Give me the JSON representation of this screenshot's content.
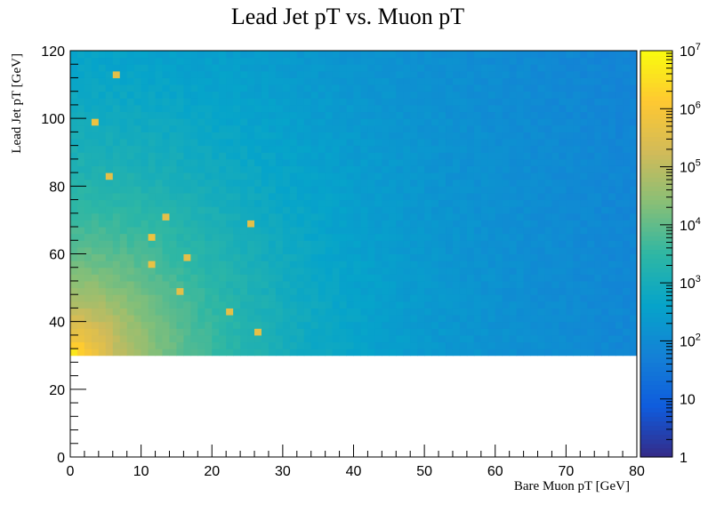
{
  "chart_data": {
    "type": "heatmap",
    "title": "Lead Jet pT vs. Muon pT",
    "xlabel": "Bare Muon pT [GeV]",
    "ylabel": "Lead Jet pT [GeV]",
    "xlim": [
      0,
      80
    ],
    "ylim": [
      0,
      120
    ],
    "x_bins": 80,
    "y_bins": 60,
    "x_ticks": [
      0,
      10,
      20,
      30,
      40,
      50,
      60,
      70,
      80
    ],
    "y_ticks": [
      0,
      20,
      40,
      60,
      80,
      100,
      120
    ],
    "filled_region": {
      "y_min": 30,
      "y_max": 120,
      "x_min": 0,
      "x_max": 80
    },
    "z_scale": "log",
    "zlim": [
      1,
      10000000
    ],
    "z_ticks": [
      {
        "value": 1,
        "label": "1",
        "exp": ""
      },
      {
        "value": 10,
        "label": "10",
        "exp": ""
      },
      {
        "value": 100,
        "label": "10",
        "exp": "2"
      },
      {
        "value": 1000,
        "label": "10",
        "exp": "3"
      },
      {
        "value": 10000,
        "label": "10",
        "exp": "4"
      },
      {
        "value": 100000,
        "label": "10",
        "exp": "5"
      },
      {
        "value": 1000000,
        "label": "10",
        "exp": "6"
      },
      {
        "value": 10000000,
        "label": "10",
        "exp": "7"
      }
    ],
    "colormap": [
      "#352a87",
      "#0f5cdd",
      "#1481d6",
      "#06a4ca",
      "#2eb7a4",
      "#87bf77",
      "#d1bb59",
      "#fec832",
      "#f9fb0e"
    ],
    "log10_counts_model": {
      "description": "approximate log10(counts) across the filled region",
      "peak_at": [
        0.5,
        30.5
      ],
      "peak_log10": 6.8,
      "floor_log10": 1.9
    },
    "hot_cells": [
      {
        "x": 6,
        "y": 113,
        "log10": 5.6
      },
      {
        "x": 3,
        "y": 99,
        "log10": 5.8
      },
      {
        "x": 5,
        "y": 83,
        "log10": 5.6
      },
      {
        "x": 13.5,
        "y": 71,
        "log10": 5.6
      },
      {
        "x": 25,
        "y": 69,
        "log10": 5.6
      },
      {
        "x": 11.5,
        "y": 65,
        "log10": 5.8
      },
      {
        "x": 16.5,
        "y": 59,
        "log10": 5.6
      },
      {
        "x": 11.5,
        "y": 57,
        "log10": 5.7
      },
      {
        "x": 15.5,
        "y": 49,
        "log10": 5.6
      },
      {
        "x": 22,
        "y": 43,
        "log10": 5.6
      },
      {
        "x": 26,
        "y": 37,
        "log10": 5.6
      }
    ]
  }
}
